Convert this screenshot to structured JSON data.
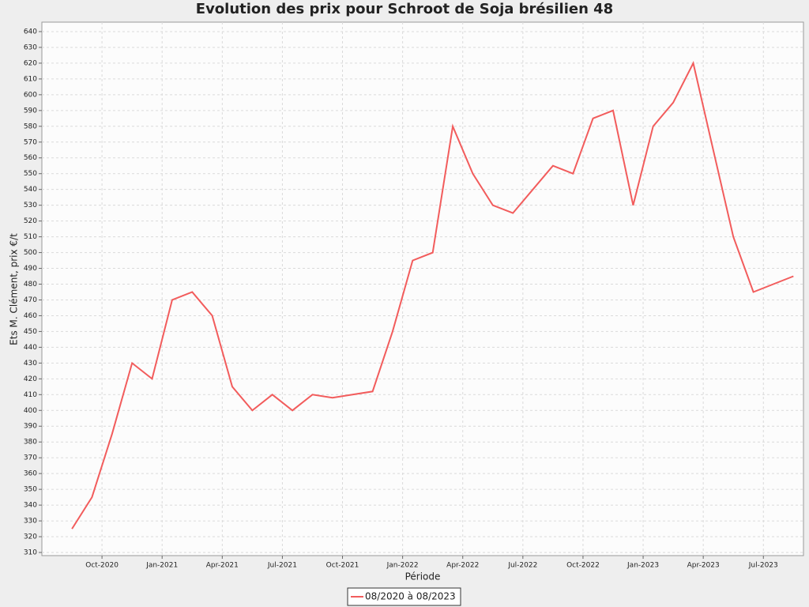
{
  "chart_data": {
    "type": "line",
    "title": "Evolution des prix pour Schroot de Soja brésilien 48",
    "x_label": "Période",
    "y_label": "Ets M. Clément, prix €/t",
    "x": [
      "2020-08",
      "2020-09",
      "2020-10",
      "2020-11",
      "2020-12",
      "2021-01",
      "2021-02",
      "2021-03",
      "2021-04",
      "2021-05",
      "2021-06",
      "2021-07",
      "2021-08",
      "2021-09",
      "2021-10",
      "2021-11",
      "2021-12",
      "2022-01",
      "2022-02",
      "2022-03",
      "2022-04",
      "2022-05",
      "2022-06",
      "2022-07",
      "2022-08",
      "2022-09",
      "2022-10",
      "2022-11",
      "2022-12",
      "2023-01",
      "2023-02",
      "2023-03",
      "2023-04",
      "2023-05",
      "2023-06",
      "2023-07",
      "2023-08"
    ],
    "series": [
      {
        "name": "08/2020 à 08/2023",
        "color": "#f25c5c",
        "values": [
          325,
          345,
          385,
          430,
          420,
          470,
          475,
          460,
          415,
          400,
          410,
          400,
          410,
          408,
          410,
          412,
          450,
          495,
          500,
          580,
          550,
          530,
          525,
          540,
          555,
          550,
          585,
          590,
          530,
          580,
          595,
          620,
          565,
          510,
          475,
          480,
          485
        ]
      }
    ],
    "xlim": [
      "2020-07",
      "2023-09"
    ],
    "xticks": [
      {
        "value": "2020-10",
        "label": "Oct-2020"
      },
      {
        "value": "2021-01",
        "label": "Jan-2021"
      },
      {
        "value": "2021-04",
        "label": "Apr-2021"
      },
      {
        "value": "2021-07",
        "label": "Jul-2021"
      },
      {
        "value": "2021-10",
        "label": "Oct-2021"
      },
      {
        "value": "2022-01",
        "label": "Jan-2022"
      },
      {
        "value": "2022-04",
        "label": "Apr-2022"
      },
      {
        "value": "2022-07",
        "label": "Jul-2022"
      },
      {
        "value": "2022-10",
        "label": "Oct-2022"
      },
      {
        "value": "2023-01",
        "label": "Jan-2023"
      },
      {
        "value": "2023-04",
        "label": "Apr-2023"
      },
      {
        "value": "2023-07",
        "label": "Jul-2023"
      }
    ],
    "ylim": [
      308,
      646
    ],
    "yticks": [
      310,
      320,
      330,
      340,
      350,
      360,
      370,
      380,
      390,
      400,
      410,
      420,
      430,
      440,
      450,
      460,
      470,
      480,
      490,
      500,
      510,
      520,
      530,
      540,
      550,
      560,
      570,
      580,
      590,
      600,
      610,
      620,
      630,
      640
    ],
    "grid": true,
    "legend": "bottom"
  }
}
